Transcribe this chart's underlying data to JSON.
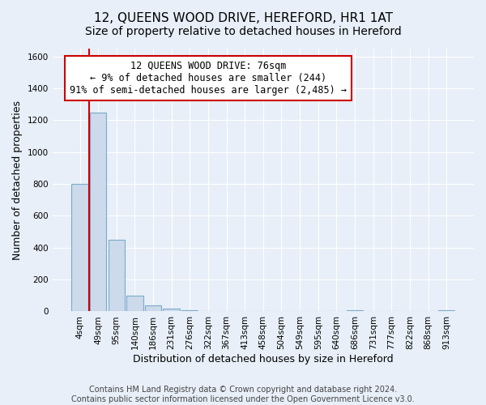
{
  "title": "12, QUEENS WOOD DRIVE, HEREFORD, HR1 1AT",
  "subtitle": "Size of property relative to detached houses in Hereford",
  "xlabel": "Distribution of detached houses by size in Hereford",
  "ylabel": "Number of detached properties",
  "footer_line1": "Contains HM Land Registry data © Crown copyright and database right 2024.",
  "footer_line2": "Contains public sector information licensed under the Open Government Licence v3.0.",
  "annotation_line1": "12 QUEENS WOOD DRIVE: 76sqm",
  "annotation_line2": "← 9% of detached houses are smaller (244)",
  "annotation_line3": "91% of semi-detached houses are larger (2,485) →",
  "bin_labels": [
    "4sqm",
    "49sqm",
    "95sqm",
    "140sqm",
    "186sqm",
    "231sqm",
    "276sqm",
    "322sqm",
    "367sqm",
    "413sqm",
    "458sqm",
    "504sqm",
    "549sqm",
    "595sqm",
    "640sqm",
    "686sqm",
    "731sqm",
    "777sqm",
    "822sqm",
    "868sqm",
    "913sqm"
  ],
  "bar_values": [
    800,
    1250,
    450,
    100,
    40,
    20,
    5,
    0,
    0,
    0,
    0,
    0,
    0,
    0,
    0,
    5,
    0,
    0,
    0,
    0,
    5
  ],
  "bar_color": "#ccdaeb",
  "bar_edge_color": "#7aaaca",
  "ylim": [
    0,
    1650
  ],
  "yticks": [
    0,
    200,
    400,
    600,
    800,
    1000,
    1200,
    1400,
    1600
  ],
  "red_line_x": 0.5,
  "red_line_color": "#cc0000",
  "annotation_box_color": "#cc0000",
  "background_color": "#e8eff8",
  "plot_background": "#e8eff8",
  "title_fontsize": 11,
  "axis_label_fontsize": 9,
  "tick_fontsize": 7.5,
  "annotation_fontsize": 8.5,
  "footer_fontsize": 7
}
